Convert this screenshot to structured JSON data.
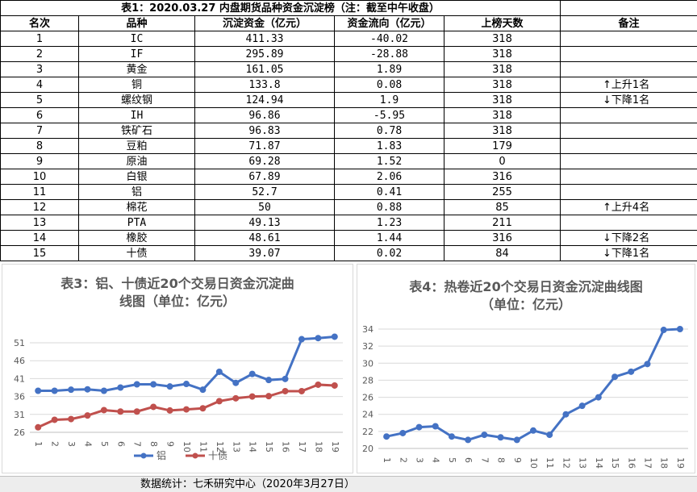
{
  "table": {
    "title": "表1：2020.03.27 内盘期货品种资金沉淀榜（注：截至中午收盘）",
    "headers": [
      "名次",
      "品种",
      "沉淀资金（亿元）",
      "资金流向（亿元）",
      "上榜天数",
      "备注"
    ],
    "rows": [
      [
        "1",
        "IC",
        "411.33",
        "-40.02",
        "318",
        ""
      ],
      [
        "2",
        "IF",
        "295.89",
        "-28.88",
        "318",
        ""
      ],
      [
        "3",
        "黄金",
        "161.05",
        "1.89",
        "318",
        ""
      ],
      [
        "4",
        "铜",
        "133.8",
        "0.08",
        "318",
        "↑上升1名"
      ],
      [
        "5",
        "螺纹钢",
        "124.94",
        "1.9",
        "318",
        "↓下降1名"
      ],
      [
        "6",
        "IH",
        "96.86",
        "-5.95",
        "318",
        ""
      ],
      [
        "7",
        "铁矿石",
        "96.83",
        "0.78",
        "318",
        ""
      ],
      [
        "8",
        "豆粕",
        "71.87",
        "1.83",
        "179",
        ""
      ],
      [
        "9",
        "原油",
        "69.28",
        "1.52",
        "0",
        ""
      ],
      [
        "10",
        "白银",
        "67.89",
        "2.06",
        "316",
        ""
      ],
      [
        "11",
        "铝",
        "52.7",
        "0.41",
        "255",
        ""
      ],
      [
        "12",
        "棉花",
        "50",
        "0.88",
        "85",
        "↑上升4名"
      ],
      [
        "13",
        "PTA",
        "49.13",
        "1.23",
        "211",
        ""
      ],
      [
        "14",
        "橡胶",
        "48.61",
        "1.44",
        "316",
        "↓下降2名"
      ],
      [
        "15",
        "十债",
        "39.07",
        "0.02",
        "84",
        "↓下降1名"
      ]
    ]
  },
  "chart_data": [
    {
      "type": "line",
      "title_line1": "表3：铝、十债近20个交易日资金沉淀曲",
      "title_line2": "线图（单位：亿元）",
      "categories": [
        "1",
        "2",
        "3",
        "4",
        "5",
        "6",
        "7",
        "8",
        "9",
        "10",
        "11",
        "12",
        "13",
        "14",
        "15",
        "16",
        "17",
        "18",
        "19"
      ],
      "ylim": [
        26,
        51
      ],
      "yticks": [
        "26",
        "31",
        "36",
        "41",
        "46",
        "51"
      ],
      "grid": true,
      "legend_position": "bottom",
      "series": [
        {
          "name": "铝",
          "color": "#4472c4",
          "values": [
            37.6,
            37.6,
            37.9,
            38.0,
            37.6,
            38.5,
            39.4,
            39.4,
            38.8,
            39.5,
            37.9,
            42.9,
            39.8,
            42.3,
            40.6,
            40.9,
            52.0,
            52.3,
            52.7
          ]
        },
        {
          "name": "十债",
          "color": "#c0504d",
          "values": [
            27.4,
            29.5,
            29.7,
            30.7,
            32.2,
            31.8,
            31.8,
            33.1,
            32.1,
            32.4,
            32.7,
            34.7,
            35.5,
            36.0,
            36.1,
            37.5,
            37.5,
            39.3,
            39.07
          ]
        }
      ]
    },
    {
      "type": "line",
      "title_line1": "表4：热卷近20个交易日资金沉淀曲线图",
      "title_line2": "（单位：亿元）",
      "categories": [
        "1",
        "2",
        "3",
        "4",
        "5",
        "6",
        "7",
        "8",
        "9",
        "10",
        "11",
        "12",
        "13",
        "14",
        "15",
        "16",
        "17",
        "18",
        "19"
      ],
      "ylim": [
        20,
        34
      ],
      "yticks": [
        "20",
        "22",
        "24",
        "26",
        "28",
        "30",
        "32",
        "34"
      ],
      "grid": true,
      "legend_position": "none",
      "series": [
        {
          "name": "",
          "color": "#4472c4",
          "values": [
            21.4,
            21.8,
            22.5,
            22.6,
            21.4,
            21.0,
            21.6,
            21.3,
            21.0,
            22.1,
            21.6,
            24.0,
            25.0,
            26.0,
            28.4,
            29.0,
            29.9,
            33.9,
            34.0
          ]
        }
      ]
    }
  ],
  "footer": {
    "text": "数据统计：七禾研究中心（2020年3月27日）"
  }
}
